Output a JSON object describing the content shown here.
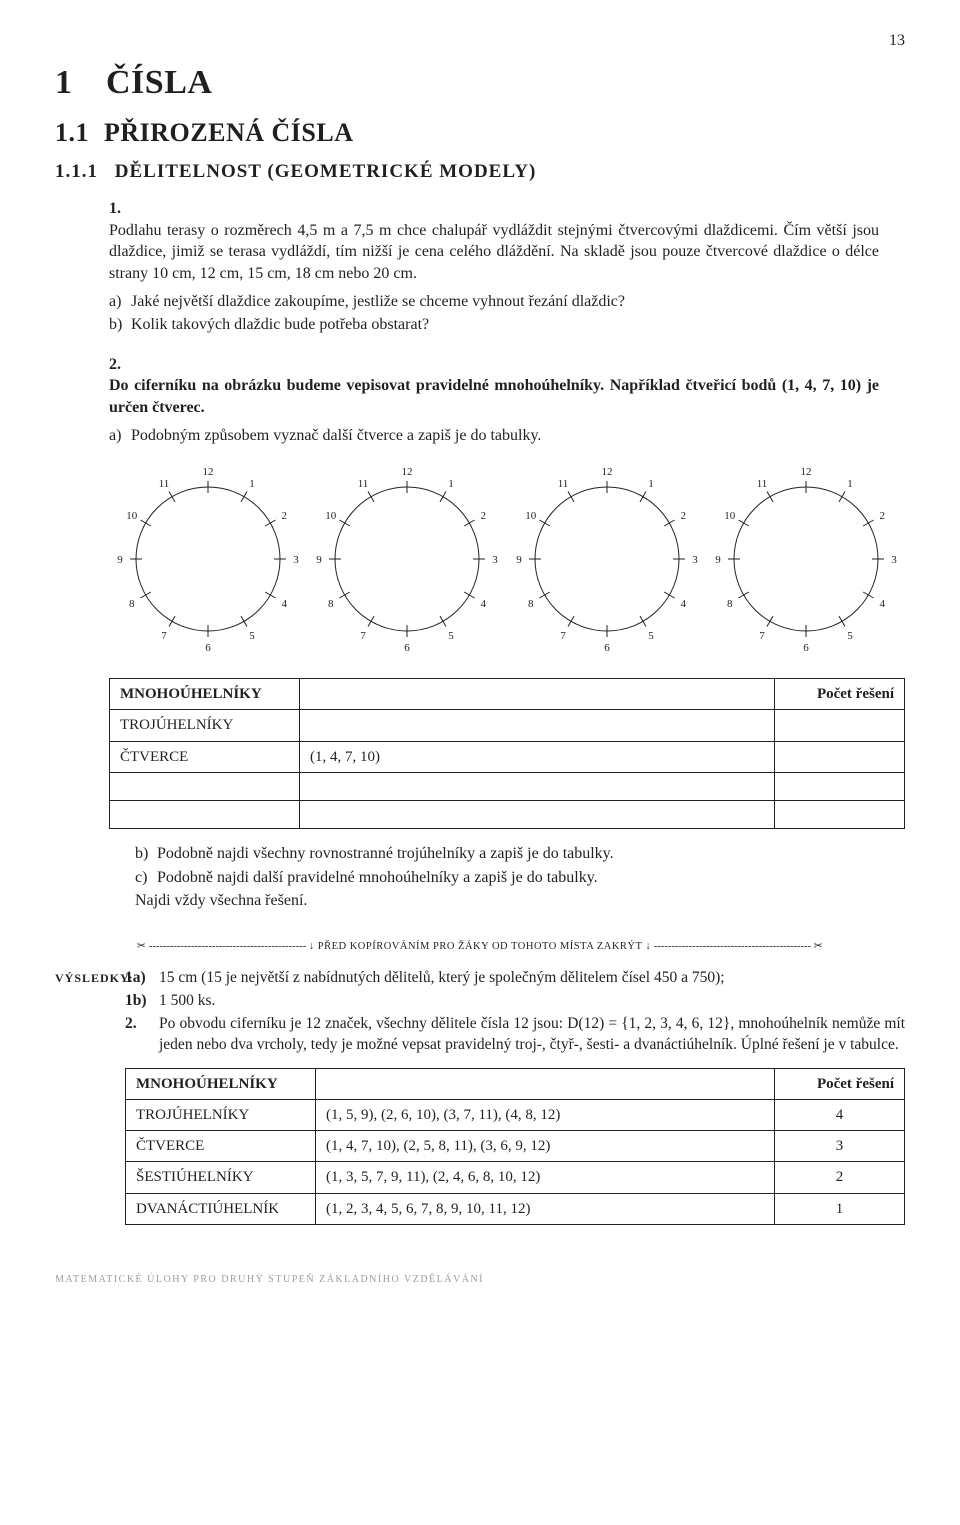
{
  "page_number": "13",
  "h1": {
    "num": "1",
    "text": "ČÍSLA"
  },
  "h2": {
    "num": "1.1",
    "text": "PŘIROZENÁ ČÍSLA"
  },
  "h3": {
    "num": "1.1.1",
    "text": "DĚLITELNOST (GEOMETRICKÉ MODELY)"
  },
  "ex1": {
    "num": "1.",
    "p1": "Podlahu terasy o rozměrech 4,5 m a 7,5 m chce chalupář vydláždit stejnými čtvercovými dlaždicemi. Čím větší jsou dlaždice, jimiž se terasa vydláždí, tím nižší je cena celého dláždění. Na skladě jsou pouze čtvercové dlaždice o délce strany 10 cm, 12 cm, 15 cm, 18 cm nebo 20 cm.",
    "a_lbl": "a)",
    "a": "Jaké největší dlaždice zakoupíme, jestliže se chceme vyhnout řezání dlaždic?",
    "b_lbl": "b)",
    "b": "Kolik takových dlaždic bude potřeba obstarat?"
  },
  "ex2": {
    "num": "2.",
    "p1": "Do ciferníku na obrázku budeme vepisovat pravidelné mnohoúhelníky. Například čtveřicí bodů (1, 4, 7, 10) je určen čtverec.",
    "a_lbl": "a)",
    "a": "Podobným způsobem vyznač další čtverce a zapiš je do tabulky.",
    "b_lbl": "b)",
    "b": "Podobně najdi všechny rovnostranné trojúhelníky a zapiš je do tabulky.",
    "c_lbl": "c)",
    "c": "Podobně najdi další pravidelné mnohoúhelníky a zapiš je do tabulky.",
    "tail": "Najdi vždy všechna řešení."
  },
  "clock": {
    "labels": [
      "12",
      "1",
      "2",
      "3",
      "4",
      "5",
      "6",
      "7",
      "8",
      "9",
      "10",
      "11"
    ],
    "radius": 72,
    "tick_len": 6,
    "font_size": 11,
    "stroke": "#231f20",
    "stroke_width": 1
  },
  "table1": {
    "h1": "MNOHOÚHELNÍKY",
    "h3": "Počet řešení",
    "rows": [
      {
        "c1": "TROJÚHELNÍKY",
        "c2": "",
        "c3": ""
      },
      {
        "c1": "ČTVERCE",
        "c2": "(1, 4, 7, 10)",
        "c3": ""
      },
      {
        "c1": "",
        "c2": "",
        "c3": ""
      },
      {
        "c1": "",
        "c2": "",
        "c3": ""
      }
    ]
  },
  "cutline": {
    "scissors_l": "✂",
    "scissors_r": "✂",
    "arrow": "↓",
    "text": " PŘED KOPÍROVÁNÍM PRO ŽÁKY OD TOHOTO MÍSTA ZAKRÝT "
  },
  "results": {
    "label": "VÝSLEDKY:",
    "r1a_lbl": "1a)",
    "r1a": "15 cm (15 je největší z nabídnutých dělitelů, který je společným dělitelem čísel 450 a 750);",
    "r1b_lbl": "1b)",
    "r1b": "1 500 ks.",
    "r2_lbl": "2.",
    "r2": "Po obvodu ciferníku je 12 značek, všechny dělitele čísla 12 jsou: D(12) = {1, 2, 3, 4, 6, 12}, mnohoúhelník nemůže mít jeden nebo dva vrcholy, tedy je možné vepsat pravidelný troj-, čtyř-, šesti- a dvanáctiúhelník. Úplné řešení je v tabulce."
  },
  "table2": {
    "h1": "MNOHOÚHELNÍKY",
    "h3": "Počet řešení",
    "rows": [
      {
        "c1": "TROJÚHELNÍKY",
        "c2": "(1, 5, 9), (2, 6, 10), (3, 7, 11), (4, 8, 12)",
        "c3": "4"
      },
      {
        "c1": "ČTVERCE",
        "c2": "(1, 4, 7, 10), (2, 5, 8, 11), (3, 6, 9, 12)",
        "c3": "3"
      },
      {
        "c1": "ŠESTIÚHELNÍKY",
        "c2": "(1, 3, 5, 7, 9, 11), (2, 4, 6, 8, 10, 12)",
        "c3": "2"
      },
      {
        "c1": "DVANÁCTIÚHELNÍK",
        "c2": "(1, 2, 3, 4, 5, 6, 7, 8, 9, 10, 11, 12)",
        "c3": "1"
      }
    ]
  },
  "footer": "MATEMATICKÉ ÚLOHY PRO DRUHÝ STUPEŇ ZÁKLADNÍHO VZDĚLÁVÁNÍ"
}
